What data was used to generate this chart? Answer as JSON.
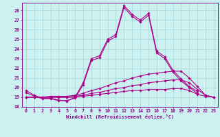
{
  "title": "",
  "xlabel": "Windchill (Refroidissement éolien,°C)",
  "background_color": "#cdf0f0",
  "grid_color": "#aadada",
  "line_color": "#aa0088",
  "xlim": [
    -0.5,
    23.5
  ],
  "ylim": [
    18,
    28.8
  ],
  "yticks": [
    18,
    19,
    20,
    21,
    22,
    23,
    24,
    25,
    26,
    27,
    28
  ],
  "xticks": [
    0,
    1,
    2,
    3,
    4,
    5,
    6,
    7,
    8,
    9,
    10,
    11,
    12,
    13,
    14,
    15,
    16,
    17,
    18,
    19,
    20,
    21,
    22,
    23
  ],
  "series": [
    [
      19.7,
      19.2,
      18.9,
      18.9,
      18.7,
      18.6,
      19.0,
      20.5,
      23.0,
      23.3,
      25.0,
      25.5,
      28.5,
      27.6,
      27.0,
      27.7,
      23.8,
      23.2,
      21.8,
      20.9,
      20.1,
      19.6,
      null,
      null
    ],
    [
      19.5,
      19.1,
      18.85,
      18.85,
      18.65,
      18.65,
      18.9,
      20.3,
      22.8,
      23.1,
      24.8,
      25.3,
      28.3,
      27.4,
      26.8,
      27.5,
      23.6,
      23.0,
      21.6,
      20.7,
      20.0,
      19.4,
      null,
      null
    ],
    [
      19.0,
      19.0,
      19.0,
      19.1,
      19.1,
      19.1,
      19.2,
      19.4,
      19.7,
      19.9,
      20.2,
      20.5,
      20.7,
      21.0,
      21.2,
      21.4,
      21.5,
      21.6,
      21.7,
      21.7,
      21.0,
      20.1,
      19.2,
      19.0
    ],
    [
      19.0,
      19.0,
      19.0,
      19.0,
      19.0,
      19.0,
      19.1,
      19.2,
      19.4,
      19.5,
      19.7,
      19.9,
      20.0,
      20.2,
      20.3,
      20.5,
      20.6,
      20.7,
      20.8,
      20.8,
      20.5,
      19.8,
      19.2,
      19.0
    ],
    [
      19.0,
      19.0,
      19.0,
      19.0,
      19.0,
      19.0,
      19.0,
      19.1,
      19.2,
      19.3,
      19.4,
      19.5,
      19.6,
      19.7,
      19.7,
      19.8,
      19.8,
      19.8,
      19.9,
      19.9,
      19.7,
      19.3,
      19.1,
      19.0
    ]
  ]
}
